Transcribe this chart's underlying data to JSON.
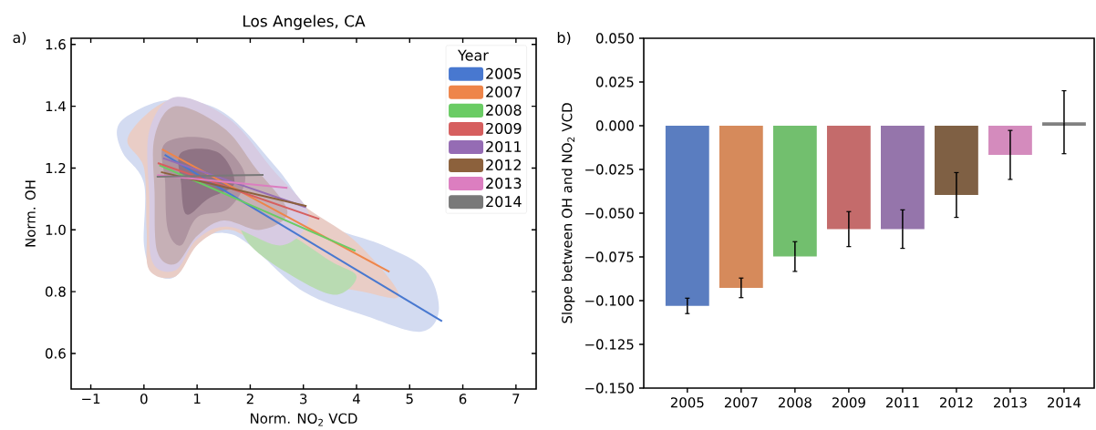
{
  "chart_data": [
    {
      "type": "line",
      "title": "Los Angeles, CA",
      "xlabel": "Norm. NO$_{2}$ VCD",
      "ylabel": "Norm. OH",
      "legend_title": "Year",
      "legend": "top right",
      "annotations": [
        "a)"
      ],
      "xlim": [
        -1.37,
        7.38
      ],
      "ylim": [
        0.485,
        1.62
      ],
      "xticks": [
        {
          "value": -1,
          "label": "−1"
        },
        0,
        1,
        2,
        3,
        4,
        5,
        6,
        7
      ],
      "yticks": [
        0.6,
        0.8,
        {
          "value": 1.0,
          "label": "1.0"
        },
        1.2,
        1.4,
        1.6
      ],
      "series": [
        {
          "name": "2005",
          "color": "#4878d0",
          "x": [
            0.39,
            5.61
          ],
          "values": [
            1.243,
            0.704
          ]
        },
        {
          "name": "2007",
          "color": "#ee854a",
          "x": [
            0.34,
            4.62
          ],
          "values": [
            1.261,
            0.864
          ]
        },
        {
          "name": "2008",
          "color": "#6acc64",
          "x": [
            0.29,
            3.98
          ],
          "values": [
            1.209,
            0.932
          ]
        },
        {
          "name": "2009",
          "color": "#d65f5f",
          "x": [
            0.26,
            3.3
          ],
          "values": [
            1.216,
            1.035
          ]
        },
        {
          "name": "2011",
          "color": "#956cb4",
          "x": [
            0.36,
            3.05
          ],
          "values": [
            1.232,
            1.073
          ]
        },
        {
          "name": "2012",
          "color": "#8c613c",
          "x": [
            0.32,
            3.06
          ],
          "values": [
            1.187,
            1.077
          ]
        },
        {
          "name": "2013",
          "color": "#dc7ec0",
          "x": [
            0.25,
            2.7
          ],
          "values": [
            1.177,
            1.136
          ]
        },
        {
          "name": "2014",
          "color": "#797979",
          "x": [
            0.24,
            2.25
          ],
          "values": [
            1.172,
            1.178
          ]
        }
      ]
    },
    {
      "type": "bar",
      "ylabel": "Slope between OH and NO$_{2}$ VCD",
      "annotations": [
        "b)"
      ],
      "categories": [
        "2005",
        "2007",
        "2008",
        "2009",
        "2011",
        "2012",
        "2013",
        "2014"
      ],
      "values": [
        -0.103,
        -0.0927,
        -0.0748,
        -0.0591,
        -0.0591,
        -0.0396,
        -0.0167,
        0.002
      ],
      "errors": [
        0.0044,
        0.0056,
        0.0085,
        0.01,
        0.011,
        0.0128,
        0.014,
        0.018
      ],
      "colors": [
        "#5a7dc0",
        "#d68a5b",
        "#72bf6e",
        "#c46b6b",
        "#9575ab",
        "#7f6044",
        "#d48bbd",
        "#808080"
      ],
      "ylim": [
        -0.15,
        0.05
      ],
      "yticks": [
        {
          "value": -0.15,
          "label": "−0.150"
        },
        {
          "value": -0.125,
          "label": "−0.125"
        },
        {
          "value": -0.1,
          "label": "−0.100"
        },
        {
          "value": -0.075,
          "label": "−0.075"
        },
        {
          "value": -0.05,
          "label": "−0.050"
        },
        {
          "value": -0.025,
          "label": "−0.025"
        },
        {
          "value": 0,
          "label": "0.000"
        },
        {
          "value": 0.025,
          "label": "0.025"
        },
        {
          "value": 0.05,
          "label": "0.050"
        }
      ]
    }
  ]
}
